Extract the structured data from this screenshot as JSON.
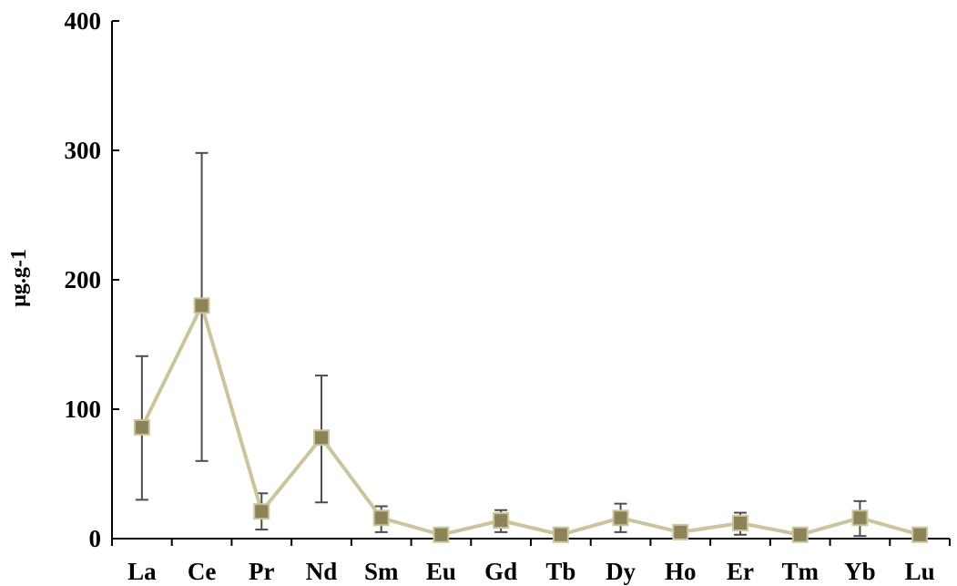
{
  "chart_data": {
    "type": "line",
    "title": "",
    "xlabel": "",
    "ylabel": "µg.g-1",
    "categories": [
      "La",
      "Ce",
      "Pr",
      "Nd",
      "Sm",
      "Eu",
      "Gd",
      "Tb",
      "Dy",
      "Ho",
      "Er",
      "Tm",
      "Yb",
      "Lu"
    ],
    "values": [
      86,
      180,
      21,
      78,
      16,
      3,
      14,
      3,
      16,
      5,
      12,
      3,
      16,
      3
    ],
    "error_low": [
      30,
      60,
      7,
      28,
      5,
      2,
      5,
      2,
      5,
      3,
      3,
      2,
      2,
      2
    ],
    "error_high": [
      141,
      298,
      35,
      126,
      25,
      4,
      22,
      4,
      27,
      6,
      20,
      4,
      29,
      4
    ],
    "yticks": [
      0,
      100,
      200,
      300,
      400
    ],
    "ylim": [
      0,
      400
    ],
    "grid": false,
    "legend": "none",
    "line_color": "#cbc49c",
    "marker_color": "#8b8458",
    "marker_edge_color": "#cbc49c",
    "errorbar_color": "#4d4d4d"
  }
}
